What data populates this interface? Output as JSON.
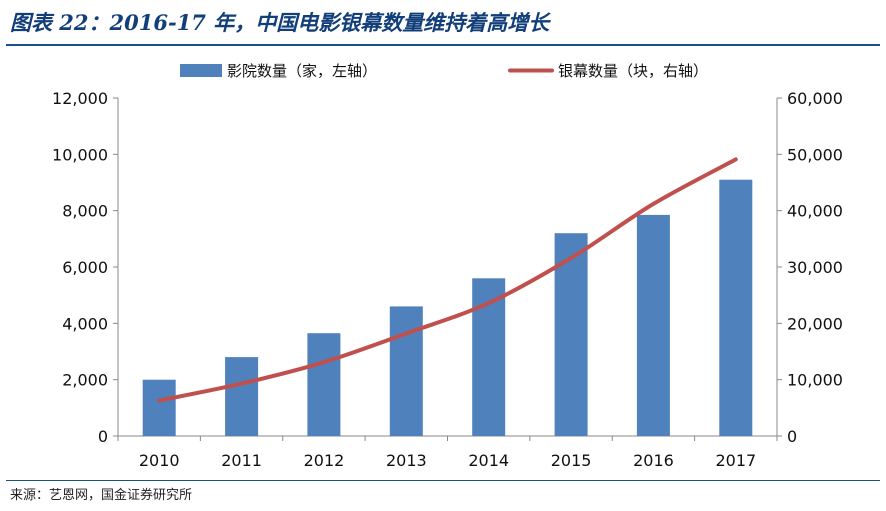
{
  "header": {
    "title": "图表 22：2016-17 年，中国电影银幕数量维持着高增长"
  },
  "footer": {
    "source": "来源：艺恩网，国金证券研究所"
  },
  "colors": {
    "bar": "#4f81bd",
    "line": "#c0504d",
    "rule": "#1f4e8c",
    "title": "#123f7a"
  },
  "chart_data": {
    "type": "bar",
    "categories": [
      "2010",
      "2011",
      "2012",
      "2013",
      "2014",
      "2015",
      "2016",
      "2017"
    ],
    "series": [
      {
        "name": "影院数量（家，左轴）",
        "type": "bar",
        "axis": "left",
        "values": [
          2000,
          2800,
          3650,
          4600,
          5600,
          7200,
          7850,
          9100
        ]
      },
      {
        "name": "银幕数量（块，右轴）",
        "type": "line",
        "axis": "right",
        "values": [
          6300,
          9300,
          13100,
          18200,
          23600,
          31600,
          41200,
          49100
        ]
      }
    ],
    "ylim_left": [
      0,
      12000
    ],
    "ylim_right": [
      0,
      60000
    ],
    "yticks_left": [
      "0",
      "2,000",
      "4,000",
      "6,000",
      "8,000",
      "10,000",
      "12,000"
    ],
    "yticks_right": [
      "0",
      "10,000",
      "20,000",
      "30,000",
      "40,000",
      "50,000",
      "60,000"
    ],
    "legend_position": "top",
    "grid": false
  }
}
